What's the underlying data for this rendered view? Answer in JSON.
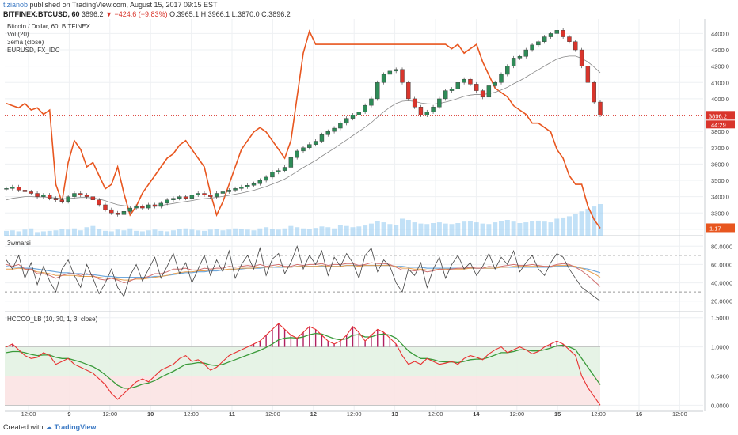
{
  "header": {
    "user": "tizianob",
    "published": "published on TradingView.com, August 15, 2017 09:15 EST",
    "symbol": "BITFINEX:BTCUSD, 60",
    "last": "3896.2",
    "arrow": "▼",
    "change": "−424.6 (−9.83%)",
    "ohlc": "O:3965.1 H:3966.1 L:3870.0 C:3896.2"
  },
  "footer": {
    "created_with": "Created with",
    "brand": "TradingView"
  },
  "chart_data": {
    "type": "line",
    "x_ticks": [
      "12:00",
      "9",
      "12:00",
      "10",
      "12:00",
      "11",
      "12:00",
      "12",
      "12:00",
      "13",
      "12:00",
      "14",
      "12:00",
      "15",
      "12:00",
      "16",
      "12:00"
    ],
    "colors": {
      "up": "#2e8b57",
      "down": "#d9352c",
      "eurusd": "#e8561f",
      "ema": "#888888",
      "vol": "#90c8f0",
      "hist": "#b02060",
      "green": "#3a9a3a",
      "red": "#e83030"
    },
    "panes": [
      {
        "legend": [
          "Bitcoin / Dollar, 60, BITFINEX",
          "Vol (20)",
          "3ema (close)",
          "EURUSD, FX_IDC"
        ],
        "y_ticks": [
          "4400.0",
          "4300.0",
          "4200.0",
          "4100.0",
          "4000.0",
          "3900.0",
          "3800.0",
          "3700.0",
          "3600.0",
          "3500.0",
          "3400.0",
          "3300.0",
          "3200.0"
        ],
        "ylim": [
          3180,
          4470
        ],
        "price_label": "3896.2",
        "price_label2": "44:29",
        "eur_label": "1.17",
        "close_line": 3896.2,
        "btc_close": [
          3450,
          3460,
          3440,
          3430,
          3420,
          3400,
          3410,
          3390,
          3380,
          3370,
          3400,
          3420,
          3410,
          3400,
          3380,
          3350,
          3320,
          3300,
          3290,
          3310,
          3330,
          3340,
          3330,
          3350,
          3340,
          3360,
          3380,
          3390,
          3400,
          3390,
          3410,
          3420,
          3410,
          3400,
          3420,
          3430,
          3440,
          3450,
          3460,
          3470,
          3480,
          3500,
          3520,
          3550,
          3560,
          3580,
          3640,
          3680,
          3700,
          3720,
          3740,
          3780,
          3800,
          3820,
          3850,
          3880,
          3900,
          3920,
          3960,
          4000,
          4100,
          4150,
          4170,
          4180,
          4100,
          4000,
          3950,
          3900,
          3920,
          3950,
          4000,
          4050,
          4060,
          4100,
          4120,
          4090,
          4050,
          4010,
          4080,
          4100,
          4150,
          4200,
          4250,
          4260,
          4300,
          4330,
          4350,
          4380,
          4400,
          4420,
          4380,
          4350,
          4300,
          4200,
          4100,
          3980,
          3900
        ],
        "ema": [
          3380,
          3390,
          3395,
          3400,
          3400,
          3398,
          3398,
          3395,
          3392,
          3388,
          3388,
          3392,
          3395,
          3395,
          3392,
          3385,
          3375,
          3362,
          3350,
          3345,
          3343,
          3342,
          3341,
          3343,
          3343,
          3346,
          3352,
          3358,
          3365,
          3370,
          3376,
          3383,
          3388,
          3391,
          3396,
          3401,
          3408,
          3415,
          3422,
          3430,
          3439,
          3450,
          3462,
          3477,
          3492,
          3508,
          3530,
          3555,
          3578,
          3600,
          3622,
          3648,
          3672,
          3696,
          3722,
          3748,
          3774,
          3800,
          3826,
          3854,
          3888,
          3920,
          3948,
          3972,
          3985,
          3988,
          3984,
          3975,
          3970,
          3968,
          3972,
          3980,
          3990,
          4002,
          4015,
          4023,
          4027,
          4026,
          4032,
          4040,
          4054,
          4071,
          4092,
          4111,
          4133,
          4156,
          4178,
          4201,
          4222,
          4244,
          4256,
          4262,
          4262,
          4248,
          4226,
          4195,
          4160
        ],
        "eurusd": [
          1.1785,
          1.178,
          1.1775,
          1.1785,
          1.177,
          1.1775,
          1.176,
          1.177,
          1.16,
          1.156,
          1.165,
          1.17,
          1.168,
          1.164,
          1.165,
          1.162,
          1.159,
          1.16,
          1.164,
          1.158,
          1.153,
          1.155,
          1.158,
          1.16,
          1.162,
          1.164,
          1.166,
          1.167,
          1.169,
          1.17,
          1.168,
          1.166,
          1.164,
          1.158,
          1.153,
          1.156,
          1.16,
          1.164,
          1.168,
          1.17,
          1.172,
          1.173,
          1.172,
          1.17,
          1.168,
          1.166,
          1.17,
          1.18,
          1.19,
          1.195,
          1.192,
          1.192,
          1.192,
          1.192,
          1.192,
          1.192,
          1.192,
          1.192,
          1.192,
          1.192,
          1.192,
          1.192,
          1.192,
          1.192,
          1.192,
          1.192,
          1.192,
          1.192,
          1.192,
          1.192,
          1.192,
          1.192,
          1.191,
          1.192,
          1.19,
          1.191,
          1.192,
          1.188,
          1.185,
          1.182,
          1.181,
          1.18,
          1.178,
          1.177,
          1.176,
          1.174,
          1.174,
          1.173,
          1.172,
          1.168,
          1.166,
          1.162,
          1.16,
          1.16,
          1.155,
          1.152,
          1.15
        ],
        "eur_range": [
          1.149,
          1.196
        ],
        "volume": [
          20,
          22,
          18,
          25,
          30,
          15,
          18,
          20,
          22,
          28,
          25,
          30,
          22,
          35,
          40,
          28,
          20,
          18,
          25,
          22,
          30,
          20,
          18,
          22,
          25,
          20,
          18,
          22,
          28,
          30,
          25,
          22,
          20,
          25,
          28,
          22,
          25,
          30,
          28,
          25,
          22,
          30,
          35,
          28,
          25,
          30,
          40,
          35,
          30,
          28,
          32,
          38,
          35,
          30,
          45,
          40,
          35,
          38,
          42,
          50,
          60,
          55,
          48,
          45,
          70,
          65,
          55,
          50,
          48,
          52,
          55,
          50,
          48,
          52,
          58,
          60,
          55,
          50,
          48,
          55,
          60,
          65,
          58,
          52,
          55,
          60,
          62,
          58,
          55,
          70,
          75,
          80,
          90,
          100,
          110,
          120,
          130
        ]
      },
      {
        "legend": [
          "3wmarsi"
        ],
        "y_ticks": [
          "80.0000",
          "60.0000",
          "40.0000",
          "20.0000"
        ],
        "ylim": [
          12,
          88
        ],
        "levels": [
          70,
          30
        ],
        "rsi": [
          65,
          55,
          70,
          45,
          62,
          38,
          58,
          42,
          30,
          55,
          65,
          48,
          35,
          60,
          45,
          28,
          40,
          55,
          35,
          25,
          48,
          60,
          42,
          55,
          68,
          45,
          58,
          72,
          50,
          62,
          40,
          55,
          70,
          48,
          65,
          52,
          75,
          45,
          60,
          70,
          55,
          78,
          48,
          66,
          72,
          50,
          62,
          80,
          55,
          70,
          60,
          75,
          48,
          68,
          58,
          72,
          62,
          45,
          70,
          78,
          52,
          65,
          58,
          40,
          30,
          55,
          48,
          62,
          35,
          55,
          68,
          45,
          60,
          70,
          55,
          62,
          48,
          58,
          72,
          55,
          68,
          60,
          75,
          52,
          62,
          70,
          55,
          48,
          62,
          72,
          68,
          55,
          45,
          35,
          30,
          25,
          20
        ],
        "rsi_ma1": [
          60,
          58,
          60,
          55,
          55,
          50,
          50,
          48,
          45,
          48,
          50,
          50,
          48,
          50,
          48,
          44,
          43,
          45,
          43,
          40,
          42,
          45,
          45,
          47,
          50,
          50,
          52,
          55,
          55,
          56,
          54,
          54,
          56,
          55,
          56,
          56,
          58,
          57,
          58,
          59,
          58,
          60,
          58,
          59,
          60,
          58,
          58,
          60,
          59,
          60,
          60,
          61,
          59,
          60,
          60,
          61,
          61,
          59,
          60,
          62,
          61,
          61,
          60,
          57,
          54,
          54,
          53,
          54,
          52,
          53,
          55,
          54,
          55,
          56,
          56,
          57,
          56,
          56,
          58,
          57,
          58,
          59,
          60,
          59,
          59,
          60,
          59,
          58,
          58,
          60,
          61,
          60,
          57,
          53,
          48,
          42,
          36
        ],
        "rsi_ma2": [
          55,
          55,
          56,
          55,
          54,
          52,
          51,
          50,
          48,
          48,
          48,
          48,
          47,
          47,
          47,
          46,
          45,
          45,
          44,
          43,
          43,
          44,
          44,
          45,
          46,
          47,
          48,
          50,
          51,
          52,
          52,
          53,
          53,
          54,
          54,
          54,
          55,
          55,
          56,
          56,
          56,
          57,
          57,
          57,
          58,
          57,
          57,
          58,
          58,
          58,
          58,
          59,
          58,
          58,
          58,
          59,
          59,
          58,
          59,
          59,
          59,
          59,
          59,
          58,
          56,
          56,
          55,
          55,
          54,
          54,
          55,
          55,
          55,
          55,
          55,
          56,
          56,
          56,
          56,
          56,
          57,
          57,
          58,
          58,
          58,
          58,
          58,
          58,
          58,
          59,
          59,
          59,
          58,
          56,
          53,
          50,
          46
        ],
        "rsi_ma3": [
          58,
          57,
          57,
          56,
          56,
          55,
          54,
          53,
          52,
          51,
          51,
          50,
          50,
          49,
          49,
          48,
          47,
          47,
          46,
          46,
          46,
          46,
          46,
          46,
          47,
          47,
          48,
          49,
          50,
          51,
          51,
          52,
          52,
          53,
          53,
          54,
          54,
          55,
          55,
          56,
          56,
          56,
          57,
          57,
          57,
          57,
          57,
          58,
          58,
          58,
          58,
          58,
          58,
          58,
          58,
          59,
          59,
          59,
          59,
          59,
          59,
          59,
          59,
          58,
          58,
          57,
          57,
          57,
          56,
          56,
          56,
          56,
          56,
          56,
          56,
          56,
          56,
          56,
          56,
          56,
          57,
          57,
          57,
          57,
          57,
          57,
          57,
          57,
          57,
          58,
          58,
          58,
          57,
          56,
          55,
          53,
          51
        ]
      },
      {
        "legend": [
          "HCCCO_LB (10, 30, 1, 3, close)"
        ],
        "y_ticks": [
          "1.5000",
          "1.0000",
          "0.5000",
          "0.0000"
        ],
        "ylim": [
          -0.05,
          1.55
        ],
        "bands": [
          1.0,
          0.5,
          0.0
        ],
        "red_line": [
          1.0,
          1.05,
          0.95,
          0.85,
          0.8,
          0.82,
          0.9,
          0.85,
          0.7,
          0.75,
          0.8,
          0.7,
          0.65,
          0.6,
          0.55,
          0.45,
          0.35,
          0.2,
          0.1,
          0.2,
          0.3,
          0.4,
          0.45,
          0.4,
          0.5,
          0.6,
          0.65,
          0.7,
          0.8,
          0.85,
          0.75,
          0.78,
          0.7,
          0.6,
          0.65,
          0.75,
          0.85,
          0.9,
          0.95,
          1.0,
          1.05,
          1.1,
          1.2,
          1.3,
          1.4,
          1.3,
          1.2,
          1.15,
          1.25,
          1.35,
          1.3,
          1.2,
          1.1,
          1.05,
          1.1,
          1.2,
          1.35,
          1.25,
          1.1,
          1.2,
          1.3,
          1.25,
          1.15,
          1.05,
          0.85,
          0.7,
          0.75,
          0.7,
          0.8,
          0.75,
          0.7,
          0.72,
          0.75,
          0.7,
          0.8,
          0.85,
          0.82,
          0.78,
          0.88,
          0.95,
          1.0,
          0.9,
          0.95,
          1.0,
          0.95,
          0.88,
          0.92,
          1.0,
          1.05,
          1.1,
          1.05,
          0.95,
          0.85,
          0.5,
          0.3,
          0.15,
          0.0
        ],
        "green_line": [
          0.9,
          0.92,
          0.92,
          0.9,
          0.87,
          0.85,
          0.86,
          0.86,
          0.82,
          0.8,
          0.8,
          0.77,
          0.74,
          0.7,
          0.66,
          0.6,
          0.52,
          0.43,
          0.34,
          0.29,
          0.29,
          0.32,
          0.36,
          0.38,
          0.42,
          0.48,
          0.53,
          0.58,
          0.64,
          0.7,
          0.71,
          0.73,
          0.72,
          0.69,
          0.68,
          0.7,
          0.74,
          0.78,
          0.82,
          0.86,
          0.9,
          0.94,
          0.99,
          1.05,
          1.12,
          1.15,
          1.16,
          1.15,
          1.17,
          1.21,
          1.23,
          1.22,
          1.18,
          1.14,
          1.12,
          1.14,
          1.2,
          1.21,
          1.17,
          1.17,
          1.21,
          1.22,
          1.2,
          1.15,
          1.04,
          0.93,
          0.86,
          0.8,
          0.8,
          0.78,
          0.75,
          0.74,
          0.74,
          0.73,
          0.75,
          0.78,
          0.79,
          0.79,
          0.82,
          0.86,
          0.9,
          0.9,
          0.92,
          0.95,
          0.95,
          0.93,
          0.93,
          0.95,
          0.98,
          1.02,
          1.03,
          1.0,
          0.95,
          0.8,
          0.65,
          0.5,
          0.35
        ]
      }
    ]
  }
}
